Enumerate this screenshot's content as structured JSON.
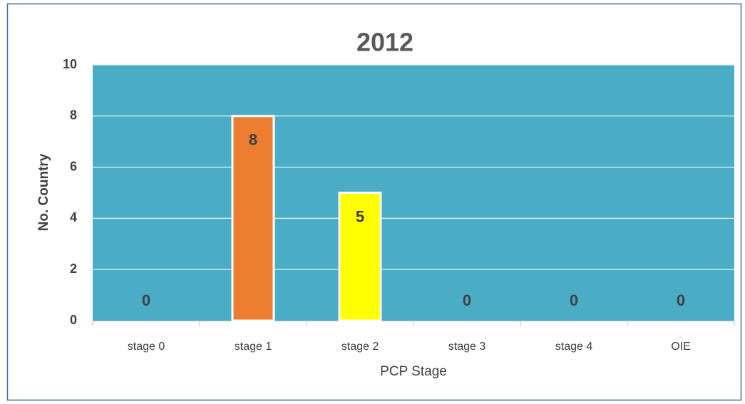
{
  "chart_data": {
    "type": "bar",
    "title": "2012",
    "x_label": "PCP Stage",
    "y_label": "No. Country",
    "categories": [
      "stage 0",
      "stage 1",
      "stage 2",
      "stage 3",
      "stage 4",
      "OIE"
    ],
    "values": [
      0,
      8,
      5,
      0,
      0,
      0
    ],
    "colors": [
      "#4BACC6",
      "#ED7D31",
      "#FFFF00",
      "#4BACC6",
      "#4BACC6",
      "#4BACC6"
    ],
    "plot_background": "#4BACC6",
    "ylim": [
      0,
      10
    ],
    "yticks": [
      0,
      2,
      4,
      6,
      8,
      10
    ],
    "grid": true
  }
}
